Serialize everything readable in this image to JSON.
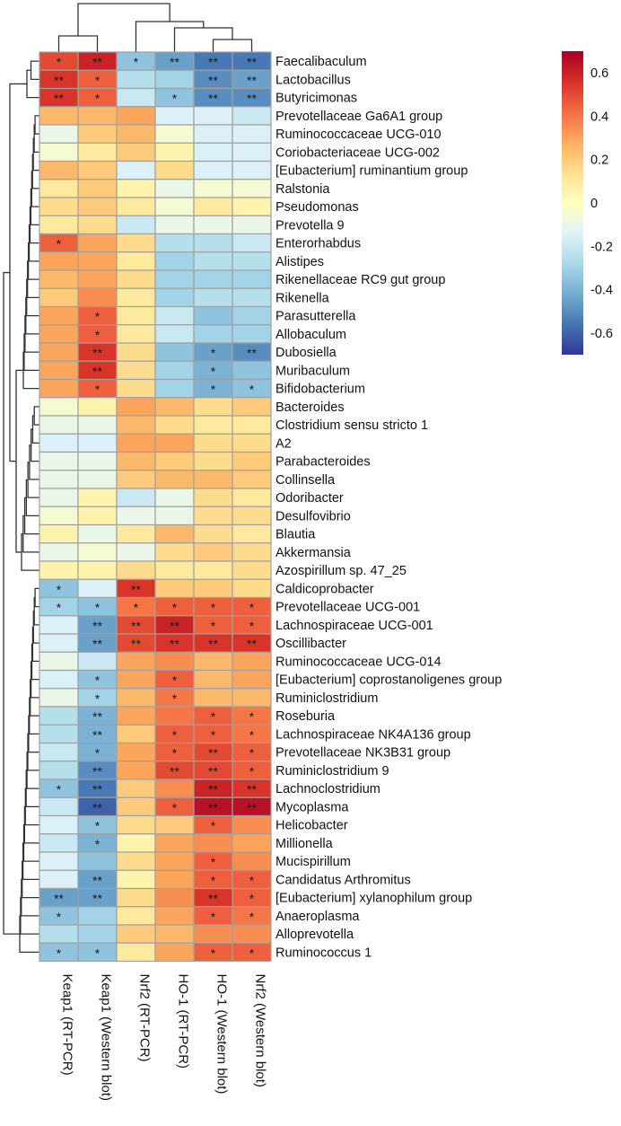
{
  "chart_data": {
    "type": "heatmap",
    "columns": [
      "Keap1 (RT-PCR)",
      "Keap1 (Western blot)",
      "Nrf2 (RT-PCR)",
      "HO-1 (RT-PCR)",
      "HO-1 (Western blot)",
      "Nrf2 (Western blot)"
    ],
    "rows": [
      "Faecalibaculum",
      "Lactobacillus",
      "Butyricimonas",
      "Prevotellaceae Ga6A1 group",
      "Ruminococcaceae UCG-010",
      "Coriobacteriaceae UCG-002",
      "[Eubacterium] ruminantium group",
      "Ralstonia",
      "Pseudomonas",
      "Prevotella 9",
      "Enterorhabdus",
      "Alistipes",
      "Rikenellaceae RC9 gut group",
      "Rikenella",
      "Parasutterella",
      "Allobaculum",
      "Dubosiella",
      "Muribaculum",
      "Bifidobacterium",
      "Bacteroides",
      "Clostridium sensu stricto 1",
      "A2",
      "Parabacteroides",
      "Collinsella",
      "Odoribacter",
      "Desulfovibrio",
      "Blautia",
      "Akkermansia",
      "Azospirillum sp. 47_25",
      "Caldicoprobacter",
      "Prevotellaceae UCG-001",
      "Lachnospiraceae UCG-001",
      "Oscillibacter",
      "Ruminococcaceae UCG-014",
      "[Eubacterium] coprostanoligenes group",
      "Ruminiclostridium",
      "Roseburia",
      "Lachnospiraceae NK4A136 group",
      "Prevotellaceae NK3B31 group",
      "Ruminiclostridium 9",
      "Lachnoclostridium",
      "Mycoplasma",
      "Helicobacter",
      "Millionella",
      "Mucispirillum",
      "Candidatus Arthromitus",
      "[Eubacterium] xylanophilum group",
      "Anaeroplasma",
      "Alloprevotella",
      "Ruminococcus 1"
    ],
    "values": [
      [
        0.5,
        0.6,
        -0.35,
        -0.45,
        -0.55,
        -0.55
      ],
      [
        0.55,
        0.45,
        -0.25,
        -0.3,
        -0.5,
        -0.45
      ],
      [
        0.55,
        0.45,
        -0.2,
        -0.35,
        -0.5,
        -0.5
      ],
      [
        0.25,
        0.25,
        0.3,
        -0.15,
        -0.15,
        -0.2
      ],
      [
        -0.1,
        0.2,
        0.25,
        -0.05,
        -0.15,
        -0.15
      ],
      [
        -0.05,
        0.1,
        0.2,
        0.05,
        -0.15,
        -0.15
      ],
      [
        0.25,
        0.2,
        -0.15,
        0.15,
        -0.15,
        -0.15
      ],
      [
        0.1,
        0.2,
        0.05,
        -0.1,
        -0.05,
        -0.05
      ],
      [
        0.15,
        0.2,
        0.1,
        -0.05,
        0.1,
        0.05
      ],
      [
        0.1,
        0.15,
        -0.2,
        -0.1,
        -0.1,
        -0.1
      ],
      [
        0.45,
        0.3,
        0.15,
        -0.25,
        -0.25,
        -0.2
      ],
      [
        0.3,
        0.3,
        0.1,
        -0.3,
        -0.25,
        -0.25
      ],
      [
        0.25,
        0.3,
        0.15,
        -0.3,
        -0.3,
        -0.3
      ],
      [
        0.2,
        0.35,
        0.1,
        -0.3,
        -0.25,
        -0.25
      ],
      [
        0.3,
        0.45,
        0.1,
        -0.2,
        -0.35,
        -0.3
      ],
      [
        0.3,
        0.45,
        0.1,
        -0.2,
        -0.3,
        -0.3
      ],
      [
        0.3,
        0.55,
        0.15,
        -0.35,
        -0.45,
        -0.5
      ],
      [
        0.3,
        0.55,
        0.15,
        -0.3,
        -0.4,
        -0.35
      ],
      [
        0.3,
        0.45,
        0.15,
        -0.3,
        -0.4,
        -0.35
      ],
      [
        -0.05,
        0.05,
        0.3,
        0.25,
        0.15,
        0.2
      ],
      [
        -0.1,
        -0.1,
        0.25,
        0.15,
        0.1,
        0.1
      ],
      [
        -0.15,
        -0.15,
        0.3,
        0.3,
        0.15,
        0.15
      ],
      [
        -0.1,
        -0.1,
        0.25,
        0.2,
        0.15,
        0.2
      ],
      [
        -0.1,
        -0.1,
        0.2,
        0.25,
        0.25,
        0.2
      ],
      [
        -0.1,
        0.05,
        -0.2,
        -0.1,
        0.15,
        0.1
      ],
      [
        -0.05,
        0.05,
        -0.1,
        -0.1,
        0.15,
        0.15
      ],
      [
        0.05,
        -0.1,
        0.1,
        0.25,
        0.15,
        0.1
      ],
      [
        -0.1,
        -0.05,
        -0.1,
        0.15,
        0.2,
        0.15
      ],
      [
        0.05,
        0.05,
        0.15,
        0.1,
        0.1,
        0.15
      ],
      [
        -0.35,
        -0.15,
        0.55,
        0.2,
        0.2,
        0.15
      ],
      [
        -0.3,
        -0.35,
        0.4,
        0.45,
        0.45,
        0.45
      ],
      [
        -0.15,
        -0.45,
        0.5,
        0.6,
        0.45,
        0.45
      ],
      [
        -0.15,
        -0.45,
        0.5,
        0.55,
        0.55,
        0.55
      ],
      [
        -0.1,
        -0.2,
        0.3,
        0.35,
        0.25,
        0.3
      ],
      [
        -0.15,
        -0.35,
        0.3,
        0.45,
        0.25,
        0.3
      ],
      [
        -0.1,
        -0.3,
        0.25,
        0.4,
        0.25,
        0.25
      ],
      [
        -0.25,
        -0.4,
        0.3,
        0.4,
        0.45,
        0.4
      ],
      [
        -0.25,
        -0.4,
        0.2,
        0.45,
        0.45,
        0.4
      ],
      [
        -0.2,
        -0.4,
        0.3,
        0.45,
        0.5,
        0.45
      ],
      [
        -0.25,
        -0.5,
        0.3,
        0.5,
        0.5,
        0.45
      ],
      [
        -0.35,
        -0.55,
        0.2,
        0.35,
        0.6,
        0.55
      ],
      [
        -0.2,
        -0.6,
        0.2,
        0.45,
        0.65,
        0.65
      ],
      [
        -0.15,
        -0.35,
        0.15,
        0.2,
        0.45,
        0.35
      ],
      [
        -0.2,
        -0.4,
        0.05,
        0.3,
        0.35,
        0.3
      ],
      [
        -0.15,
        -0.35,
        0.15,
        0.3,
        0.45,
        0.35
      ],
      [
        -0.15,
        -0.45,
        0.05,
        0.3,
        0.45,
        0.45
      ],
      [
        -0.45,
        -0.45,
        0.15,
        0.35,
        0.55,
        0.45
      ],
      [
        -0.35,
        -0.3,
        0.1,
        0.3,
        0.45,
        0.4
      ],
      [
        -0.25,
        -0.3,
        0.2,
        0.25,
        0.35,
        0.35
      ],
      [
        -0.35,
        -0.35,
        0.1,
        0.3,
        0.45,
        0.45
      ]
    ],
    "significance": [
      [
        "*",
        "**",
        "*",
        "**",
        "**",
        "**"
      ],
      [
        "**",
        "*",
        "",
        "",
        "**",
        "**"
      ],
      [
        "**",
        "*",
        "",
        "*",
        "**",
        "**"
      ],
      [
        "",
        "",
        "",
        "",
        "",
        ""
      ],
      [
        "",
        "",
        "",
        "",
        "",
        ""
      ],
      [
        "",
        "",
        "",
        "",
        "",
        ""
      ],
      [
        "",
        "",
        "",
        "",
        "",
        ""
      ],
      [
        "",
        "",
        "",
        "",
        "",
        ""
      ],
      [
        "",
        "",
        "",
        "",
        "",
        ""
      ],
      [
        "",
        "",
        "",
        "",
        "",
        ""
      ],
      [
        "*",
        "",
        "",
        "",
        "",
        ""
      ],
      [
        "",
        "",
        "",
        "",
        "",
        ""
      ],
      [
        "",
        "",
        "",
        "",
        "",
        ""
      ],
      [
        "",
        "",
        "",
        "",
        "",
        ""
      ],
      [
        "",
        "*",
        "",
        "",
        "",
        ""
      ],
      [
        "",
        "*",
        "",
        "",
        "",
        ""
      ],
      [
        "",
        "**",
        "",
        "",
        "*",
        "**"
      ],
      [
        "",
        "**",
        "",
        "",
        "*",
        ""
      ],
      [
        "",
        "*",
        "",
        "",
        "*",
        "*"
      ],
      [
        "",
        "",
        "",
        "",
        "",
        ""
      ],
      [
        "",
        "",
        "",
        "",
        "",
        ""
      ],
      [
        "",
        "",
        "",
        "",
        "",
        ""
      ],
      [
        "",
        "",
        "",
        "",
        "",
        ""
      ],
      [
        "",
        "",
        "",
        "",
        "",
        ""
      ],
      [
        "",
        "",
        "",
        "",
        "",
        ""
      ],
      [
        "",
        "",
        "",
        "",
        "",
        ""
      ],
      [
        "",
        "",
        "",
        "",
        "",
        ""
      ],
      [
        "",
        "",
        "",
        "",
        "",
        ""
      ],
      [
        "",
        "",
        "",
        "",
        "",
        ""
      ],
      [
        "*",
        "",
        "**",
        "",
        "",
        ""
      ],
      [
        "*",
        "*",
        "*",
        "*",
        "*",
        "*"
      ],
      [
        "",
        "**",
        "**",
        "**",
        "*",
        "*"
      ],
      [
        "",
        "**",
        "**",
        "**",
        "**",
        "**"
      ],
      [
        "",
        "",
        "",
        "",
        "",
        ""
      ],
      [
        "",
        "*",
        "",
        "*",
        "",
        ""
      ],
      [
        "",
        "*",
        "",
        "*",
        "",
        ""
      ],
      [
        "",
        "**",
        "",
        "",
        "*",
        "*"
      ],
      [
        "",
        "**",
        "",
        "*",
        "*",
        "*"
      ],
      [
        "",
        "*",
        "",
        "*",
        "**",
        "*"
      ],
      [
        "",
        "**",
        "",
        "**",
        "**",
        "*"
      ],
      [
        "*",
        "**",
        "",
        "",
        "**",
        "**"
      ],
      [
        "",
        "**",
        "",
        "*",
        "**",
        "**"
      ],
      [
        "",
        "*",
        "",
        "",
        "*",
        ""
      ],
      [
        "",
        "*",
        "",
        "",
        "",
        ""
      ],
      [
        "",
        "",
        "",
        "",
        "*",
        ""
      ],
      [
        "",
        "**",
        "",
        "",
        "*",
        "*"
      ],
      [
        "**",
        "**",
        "",
        "",
        "**",
        "*"
      ],
      [
        "*",
        "",
        "",
        "",
        "*",
        "*"
      ],
      [
        "",
        "",
        "",
        "",
        "",
        ""
      ],
      [
        "*",
        "*",
        "",
        "",
        "*",
        "*"
      ]
    ],
    "color_scale": {
      "min": -0.7,
      "max": 0.7,
      "ticks": [
        "0.6",
        "0.4",
        "0.2",
        "0",
        "-0.2",
        "-0.4",
        "-0.6"
      ],
      "tick_values": [
        0.6,
        0.4,
        0.2,
        0,
        -0.2,
        -0.4,
        -0.6
      ],
      "colors": [
        "#313695",
        "#4575b4",
        "#74add1",
        "#abd9e9",
        "#e0f3f8",
        "#ffffbf",
        "#fee090",
        "#fdae61",
        "#f46d43",
        "#d73027",
        "#a50026"
      ]
    },
    "dendrogram": {
      "column_tree": "((Keap1 (RT-PCR), Keap1 (Western blot)), (Nrf2 (RT-PCR), (HO-1 (RT-PCR), (HO-1 (Western blot), Nrf2 (Western blot)))))",
      "row_groups": [
        [
          "Faecalibaculum",
          "Lactobacillus",
          "Butyricimonas"
        ],
        [
          "Prevotellaceae Ga6A1 group … Bifidobacterium"
        ],
        [
          "Bacteroides … Azospirillum sp. 47_25"
        ],
        [
          "Caldicoprobacter … Ruminococcus 1"
        ]
      ]
    },
    "grid_color": "#a0a0a0",
    "dendrogram_color": "#333333"
  }
}
